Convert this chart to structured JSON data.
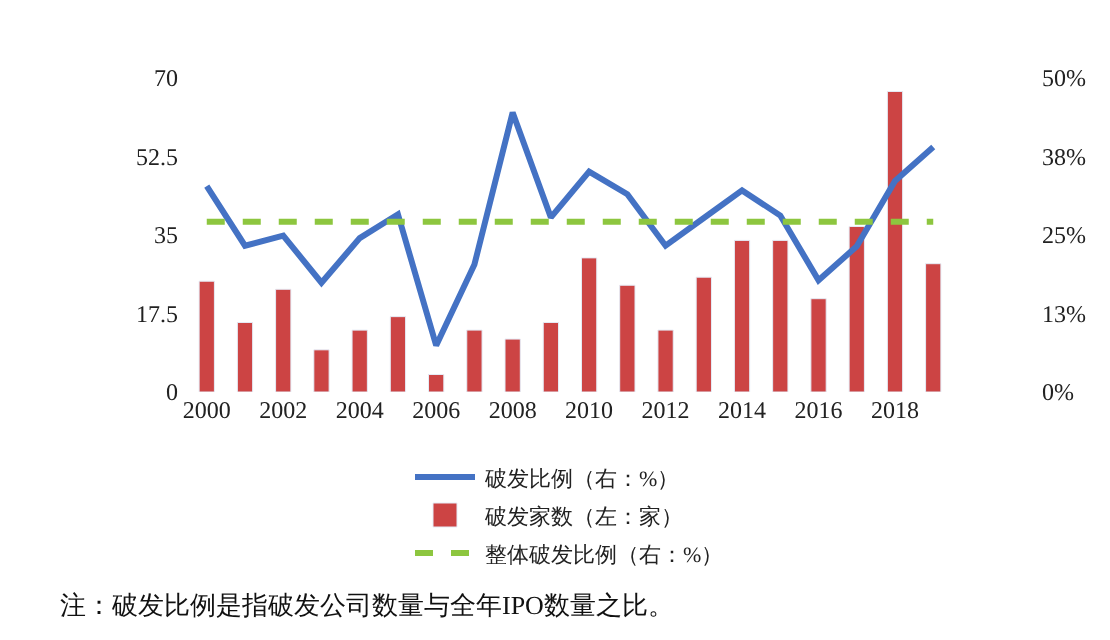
{
  "chart_data": {
    "type": "bar",
    "categories": [
      "2000",
      null,
      "2002",
      null,
      "2004",
      null,
      "2006",
      null,
      "2008",
      null,
      "2010",
      null,
      "2012",
      null,
      "2014",
      null,
      "2016",
      null,
      "2018",
      null
    ],
    "series": [
      {
        "name": "破发比例（右：%）",
        "type": "line",
        "axis": "y2",
        "color": "#4472c4",
        "line_style": "solid",
        "values": [
          32.8,
          23.3,
          24.9,
          17.4,
          24.5,
          28.3,
          7.4,
          20.3,
          44.5,
          27.8,
          35.1,
          31.5,
          23.3,
          27.7,
          32.1,
          28.1,
          17.8,
          23.2,
          33.6,
          39.0
        ]
      },
      {
        "name": "破发家数（左：家）",
        "axis": "y",
        "color": "#cc4444",
        "values": [
          24.7,
          15.5,
          22.9,
          9.4,
          13.8,
          16.8,
          3.9,
          13.8,
          11.8,
          15.5,
          29.9,
          23.8,
          13.8,
          25.6,
          33.8,
          33.8,
          20.8,
          36.9,
          67,
          28.6
        ]
      },
      {
        "name": "整体破发比例（右：%）",
        "type": "line",
        "axis": "y2",
        "color": "#8dc63f",
        "line_style": "dashed",
        "values": [
          27.1,
          27.1,
          27.1,
          27.1,
          27.1,
          27.1,
          27.1,
          27.1,
          27.1,
          27.1,
          27.1,
          27.1,
          27.1,
          27.1,
          27.1,
          27.1,
          27.1,
          27.1,
          27.1,
          27.1
        ]
      }
    ],
    "ylim": [
      0,
      70
    ],
    "yticks": [
      0,
      17.5,
      35,
      52.5,
      70
    ],
    "y2lim": [
      0,
      50
    ],
    "y2ticks": [
      {
        "value": 0,
        "label": "0%"
      },
      {
        "value": 12.5,
        "label": "13%"
      },
      {
        "value": 25,
        "label": "25%"
      },
      {
        "value": 37.5,
        "label": "38%"
      },
      {
        "value": 50,
        "label": "50%"
      }
    ],
    "legend": "bottom",
    "annotations": [
      "注：破发比例是指破发公司数量与全年IPO数量之比。"
    ]
  }
}
